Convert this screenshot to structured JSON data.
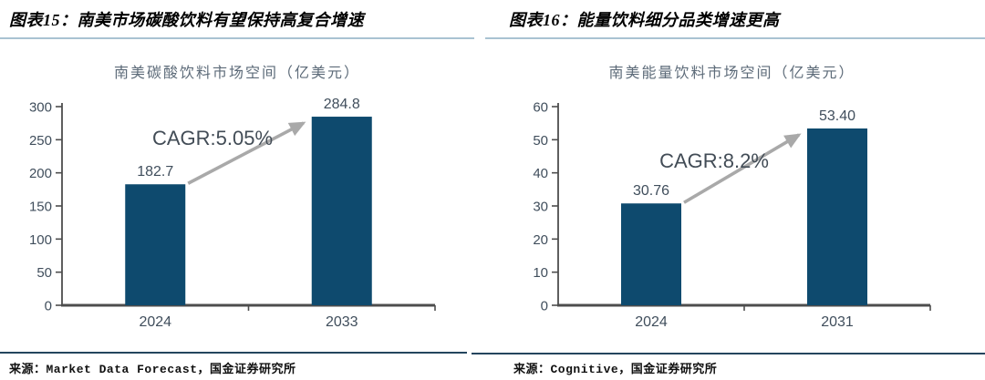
{
  "figures": [
    {
      "header": "图表15：南美市场碳酸饮料有望保持高复合增速",
      "source": "来源：Market Data Forecast，国金证券研究所"
    },
    {
      "header": "图表16：能量饮料细分品类增速更高",
      "source": "来源：Cognitive，国金证券研究所"
    }
  ],
  "chart_data": [
    {
      "type": "bar",
      "title": "南美碳酸饮料市场空间（亿美元）",
      "categories": [
        "2024",
        "2033"
      ],
      "values": [
        182.7,
        284.8
      ],
      "data_labels": [
        "182.7",
        "284.8"
      ],
      "annotation": "CAGR:5.05%",
      "xlabel": "",
      "ylabel": "",
      "ylim": [
        0,
        300
      ],
      "ytick_step": 50,
      "yticks": [
        0,
        50,
        100,
        150,
        200,
        250,
        300
      ],
      "grid": false,
      "legend": false,
      "bar_color": "#0e4a6e"
    },
    {
      "type": "bar",
      "title": "南美能量饮料市场空间（亿美元）",
      "categories": [
        "2024",
        "2031"
      ],
      "values": [
        30.76,
        53.4
      ],
      "data_labels": [
        "30.76",
        "53.40"
      ],
      "annotation": "CAGR:8.2%",
      "xlabel": "",
      "ylabel": "",
      "ylim": [
        0,
        60
      ],
      "ytick_step": 10,
      "yticks": [
        0,
        10,
        20,
        30,
        40,
        50,
        60
      ],
      "grid": false,
      "legend": false,
      "bar_color": "#0e4a6e"
    }
  ],
  "colors": {
    "bar": "#0e4a6e",
    "axis": "#4d4d4d",
    "tick_text": "#404e5c",
    "annotation_text": "#424c56",
    "arrow": "#a9a9a9",
    "chart_title": "#5d6b79",
    "header_rule": "#a9c3d2",
    "source_rule": "#24455e",
    "header_text": "#000000",
    "source_text": "#111111"
  }
}
